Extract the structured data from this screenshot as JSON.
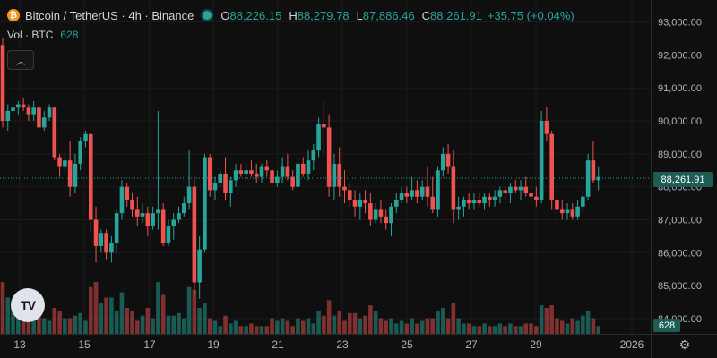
{
  "legend": {
    "icon": "bitcoin-icon",
    "symbol": "Bitcoin / TetherUS · 4h · Binance",
    "open_label": "O",
    "open": "88,226.15",
    "high_label": "H",
    "high": "88,279.78",
    "low_label": "L",
    "low": "87,886.46",
    "close_label": "C",
    "close": "88,261.91",
    "change": "+35.75 (+0.04%)"
  },
  "volume": {
    "label": "Vol · BTC",
    "value": "628"
  },
  "price_scale": [
    "93,000.00",
    "92,000.00",
    "91,000.00",
    "90,000.00",
    "89,000.00",
    "88,000.00",
    "87,000.00",
    "86,000.00",
    "85,000.00",
    "84,000.00"
  ],
  "current_price": "88,261.91",
  "time_scale": [
    "13",
    "15",
    "17",
    "19",
    "21",
    "23",
    "25",
    "27",
    "29",
    "2026"
  ],
  "colors": {
    "up": "#26a69a",
    "down": "#ef5350",
    "background": "#0f0f0f"
  },
  "chart_data": {
    "type": "candlestick",
    "symbol": "Bitcoin / TetherUS",
    "interval": "4h",
    "exchange": "Binance",
    "ylim": [
      83700,
      93300
    ],
    "x_ticks": [
      "13",
      "15",
      "17",
      "19",
      "21",
      "23",
      "25",
      "27",
      "29",
      "2026"
    ],
    "candles": [
      [
        92300,
        92500,
        89800,
        90000,
        1
      ],
      [
        90000,
        90500,
        89700,
        90300,
        0.7
      ],
      [
        90300,
        90700,
        90100,
        90400,
        0.55
      ],
      [
        90400,
        90600,
        90200,
        90500,
        0.4
      ],
      [
        90500,
        90700,
        90300,
        90400,
        0.45
      ],
      [
        90400,
        90500,
        90000,
        90200,
        0.35
      ],
      [
        90200,
        90600,
        90000,
        90400,
        0.4
      ],
      [
        90400,
        90600,
        89700,
        89800,
        0.5
      ],
      [
        89800,
        90300,
        89700,
        90100,
        0.3
      ],
      [
        90100,
        90500,
        90000,
        90400,
        0.25
      ],
      [
        90400,
        90400,
        88800,
        88900,
        0.5
      ],
      [
        88900,
        89000,
        88300,
        88600,
        0.45
      ],
      [
        88600,
        89000,
        88400,
        88800,
        0.3
      ],
      [
        88800,
        89400,
        87700,
        88000,
        0.3
      ],
      [
        88000,
        89000,
        87800,
        88700,
        0.35
      ],
      [
        88700,
        89500,
        88500,
        89400,
        0.4
      ],
      [
        89400,
        89700,
        89200,
        89600,
        0.25
      ],
      [
        89600,
        89600,
        86600,
        87000,
        0.9
      ],
      [
        87000,
        87400,
        85700,
        86200,
        1
      ],
      [
        86200,
        86700,
        86000,
        86600,
        0.6
      ],
      [
        86600,
        86700,
        85800,
        86000,
        0.7
      ],
      [
        86000,
        86500,
        85700,
        86300,
        0.7
      ],
      [
        86300,
        87300,
        86000,
        87200,
        0.45
      ],
      [
        87200,
        88200,
        87000,
        88000,
        0.8
      ],
      [
        88000,
        88100,
        87400,
        87600,
        0.5
      ],
      [
        87600,
        87800,
        87100,
        87300,
        0.45
      ],
      [
        87300,
        87700,
        86800,
        87100,
        0.25
      ],
      [
        87100,
        87500,
        86900,
        87200,
        0.35
      ],
      [
        87200,
        87400,
        86500,
        86800,
        0.5
      ],
      [
        86800,
        87400,
        86700,
        87200,
        0.3
      ],
      [
        87200,
        90300,
        86700,
        87300,
        1
      ],
      [
        87300,
        87500,
        86200,
        86300,
        0.75
      ],
      [
        86300,
        87000,
        86200,
        86800,
        0.35
      ],
      [
        86800,
        87200,
        86400,
        87000,
        0.35
      ],
      [
        87000,
        87400,
        86900,
        87200,
        0.4
      ],
      [
        87200,
        87700,
        87100,
        87500,
        0.3
      ],
      [
        87500,
        89100,
        87300,
        88000,
        0.9
      ],
      [
        88000,
        88300,
        84700,
        85100,
        0.85
      ],
      [
        85100,
        86500,
        84600,
        86100,
        0.5
      ],
      [
        86100,
        89000,
        86000,
        88900,
        0.6
      ],
      [
        88900,
        89000,
        87700,
        87900,
        0.3
      ],
      [
        87900,
        88300,
        87600,
        88100,
        0.25
      ],
      [
        88100,
        88500,
        88000,
        88400,
        0.15
      ],
      [
        88400,
        88900,
        87600,
        87800,
        0.35
      ],
      [
        87800,
        88300,
        87400,
        88200,
        0.2
      ],
      [
        88200,
        88700,
        88000,
        88500,
        0.25
      ],
      [
        88500,
        88700,
        88300,
        88400,
        0.15
      ],
      [
        88400,
        88700,
        88200,
        88500,
        0.15
      ],
      [
        88500,
        88800,
        88300,
        88400,
        0.2
      ],
      [
        88400,
        88700,
        88100,
        88300,
        0.15
      ],
      [
        88300,
        88700,
        88100,
        88600,
        0.15
      ],
      [
        88600,
        88800,
        88300,
        88500,
        0.15
      ],
      [
        88500,
        88600,
        88000,
        88100,
        0.3
      ],
      [
        88100,
        88500,
        88000,
        88300,
        0.25
      ],
      [
        88300,
        88900,
        88100,
        88600,
        0.3
      ],
      [
        88600,
        89000,
        88200,
        88300,
        0.25
      ],
      [
        88300,
        88500,
        87900,
        88000,
        0.15
      ],
      [
        88000,
        88900,
        87800,
        88700,
        0.3
      ],
      [
        88700,
        88900,
        88300,
        88400,
        0.25
      ],
      [
        88400,
        89100,
        88200,
        88800,
        0.3
      ],
      [
        88800,
        89300,
        88500,
        89100,
        0.2
      ],
      [
        89100,
        90100,
        88900,
        89900,
        0.45
      ],
      [
        89900,
        90600,
        89000,
        89800,
        0.35
      ],
      [
        89800,
        90200,
        87700,
        88000,
        0.65
      ],
      [
        88000,
        89000,
        87600,
        88700,
        0.35
      ],
      [
        88700,
        89200,
        87700,
        88000,
        0.45
      ],
      [
        88000,
        88500,
        87500,
        87900,
        0.25
      ],
      [
        87900,
        88100,
        87400,
        87600,
        0.4
      ],
      [
        87600,
        87900,
        87100,
        87400,
        0.4
      ],
      [
        87400,
        87800,
        87000,
        87600,
        0.3
      ],
      [
        87600,
        87900,
        87200,
        87500,
        0.35
      ],
      [
        87500,
        87800,
        86800,
        87000,
        0.55
      ],
      [
        87000,
        87500,
        86900,
        87300,
        0.45
      ],
      [
        87300,
        87600,
        86900,
        87100,
        0.3
      ],
      [
        87100,
        87300,
        86700,
        86900,
        0.25
      ],
      [
        86900,
        87500,
        86500,
        87400,
        0.3
      ],
      [
        87400,
        87800,
        87200,
        87600,
        0.2
      ],
      [
        87600,
        88000,
        87500,
        87800,
        0.25
      ],
      [
        87800,
        88000,
        87500,
        87700,
        0.2
      ],
      [
        87700,
        88300,
        87600,
        87900,
        0.3
      ],
      [
        87900,
        88200,
        87500,
        87700,
        0.2
      ],
      [
        87700,
        88200,
        87600,
        88000,
        0.25
      ],
      [
        88000,
        88600,
        87400,
        87700,
        0.3
      ],
      [
        87700,
        88300,
        87200,
        87300,
        0.3
      ],
      [
        87300,
        88600,
        87100,
        88500,
        0.45
      ],
      [
        88500,
        89200,
        88300,
        89000,
        0.5
      ],
      [
        89000,
        89300,
        88400,
        88600,
        0.3
      ],
      [
        88600,
        89100,
        86900,
        87300,
        0.6
      ],
      [
        87300,
        87700,
        87000,
        87400,
        0.3
      ],
      [
        87400,
        87700,
        87100,
        87600,
        0.2
      ],
      [
        87600,
        87800,
        87300,
        87500,
        0.2
      ],
      [
        87500,
        87800,
        87300,
        87600,
        0.15
      ],
      [
        87600,
        87800,
        87400,
        87500,
        0.15
      ],
      [
        87500,
        87800,
        87300,
        87700,
        0.2
      ],
      [
        87700,
        87800,
        87400,
        87600,
        0.15
      ],
      [
        87600,
        87900,
        87400,
        87700,
        0.15
      ],
      [
        87700,
        88000,
        87500,
        87900,
        0.2
      ],
      [
        87900,
        88000,
        87600,
        87800,
        0.15
      ],
      [
        87800,
        88100,
        87500,
        88000,
        0.2
      ],
      [
        88000,
        88200,
        87800,
        87900,
        0.15
      ],
      [
        87900,
        88200,
        87600,
        88000,
        0.15
      ],
      [
        88000,
        88300,
        87700,
        87800,
        0.2
      ],
      [
        87800,
        88200,
        87500,
        87700,
        0.2
      ],
      [
        87700,
        88000,
        87400,
        87600,
        0.15
      ],
      [
        87600,
        90300,
        87500,
        90000,
        0.55
      ],
      [
        90000,
        90400,
        89400,
        89600,
        0.5
      ],
      [
        89600,
        89700,
        87300,
        87600,
        0.55
      ],
      [
        87600,
        88000,
        86800,
        87300,
        0.3
      ],
      [
        87300,
        87600,
        87000,
        87200,
        0.25
      ],
      [
        87200,
        87500,
        87000,
        87300,
        0.2
      ],
      [
        87300,
        87500,
        87000,
        87100,
        0.3
      ],
      [
        87100,
        87600,
        87000,
        87400,
        0.25
      ],
      [
        87400,
        87900,
        87200,
        87700,
        0.35
      ],
      [
        87700,
        89000,
        87600,
        88800,
        0.45
      ],
      [
        88800,
        89400,
        88100,
        88200,
        0.3
      ],
      [
        88200,
        88600,
        87900,
        88300,
        0.15
      ]
    ]
  }
}
